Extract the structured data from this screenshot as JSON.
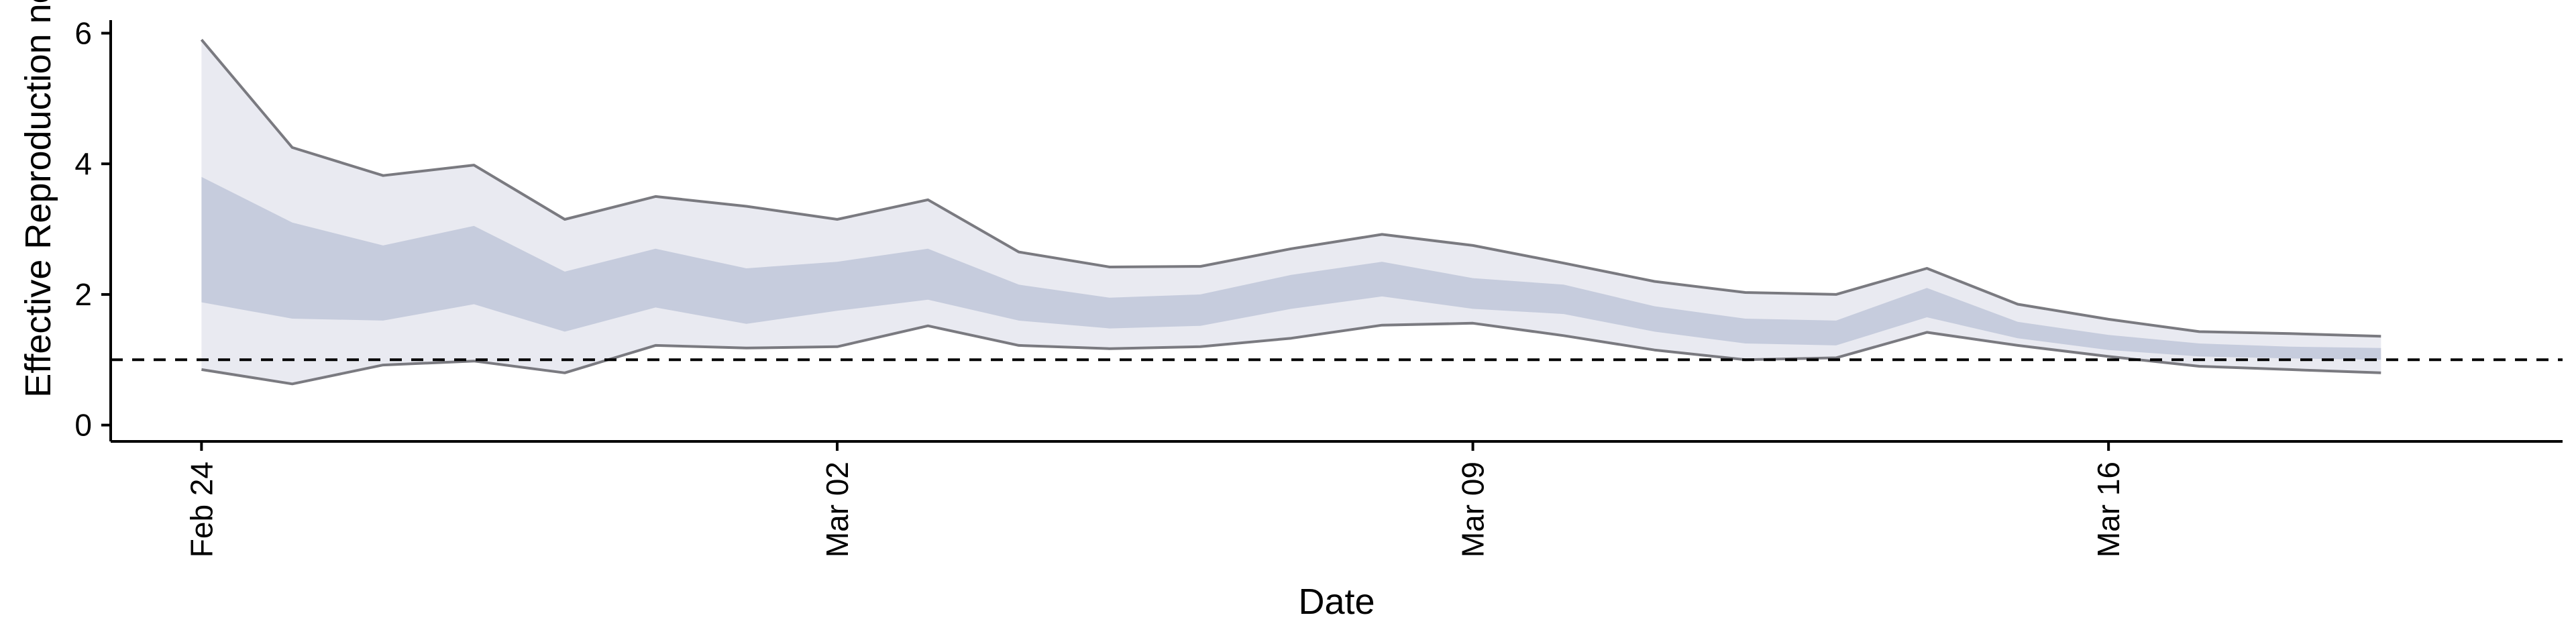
{
  "chart_data": {
    "type": "area",
    "title": "",
    "xlabel": "Date",
    "ylabel": "Effective Reproduction no",
    "x": [
      "2020-02-24",
      "2020-02-25",
      "2020-02-26",
      "2020-02-27",
      "2020-02-28",
      "2020-02-29",
      "2020-03-01",
      "2020-03-02",
      "2020-03-03",
      "2020-03-04",
      "2020-03-05",
      "2020-03-06",
      "2020-03-07",
      "2020-03-08",
      "2020-03-09",
      "2020-03-10",
      "2020-03-11",
      "2020-03-12",
      "2020-03-13",
      "2020-03-14",
      "2020-03-15",
      "2020-03-16",
      "2020-03-17",
      "2020-03-18",
      "2020-03-19"
    ],
    "xlim": [
      "2020-02-23",
      "2020-03-21"
    ],
    "ylim": [
      -0.25,
      6.2
    ],
    "x_ticks": [
      {
        "date": "2020-02-24",
        "label": "Feb 24"
      },
      {
        "date": "2020-03-02",
        "label": "Mar 02"
      },
      {
        "date": "2020-03-09",
        "label": "Mar 09"
      },
      {
        "date": "2020-03-16",
        "label": "Mar 16"
      }
    ],
    "y_ticks": [
      0,
      2,
      4,
      6
    ],
    "reference_line": 1,
    "series": {
      "outer_upper": [
        5.9,
        4.25,
        3.82,
        3.98,
        3.15,
        3.5,
        3.35,
        3.15,
        3.45,
        2.65,
        2.42,
        2.43,
        2.7,
        2.92,
        2.75,
        2.48,
        2.2,
        2.03,
        2.0,
        2.4,
        1.85,
        1.62,
        1.43,
        1.4,
        1.36
      ],
      "outer_lower": [
        0.85,
        0.63,
        0.92,
        0.98,
        0.8,
        1.22,
        1.18,
        1.2,
        1.52,
        1.22,
        1.17,
        1.2,
        1.33,
        1.53,
        1.56,
        1.37,
        1.15,
        1.0,
        1.03,
        1.42,
        1.22,
        1.05,
        0.9,
        0.85,
        0.8
      ],
      "inner_upper": [
        3.8,
        3.1,
        2.75,
        3.05,
        2.35,
        2.7,
        2.4,
        2.5,
        2.7,
        2.15,
        1.95,
        2.0,
        2.3,
        2.5,
        2.25,
        2.15,
        1.82,
        1.63,
        1.6,
        2.1,
        1.58,
        1.38,
        1.25,
        1.2,
        1.18
      ],
      "inner_lower": [
        1.88,
        1.63,
        1.6,
        1.85,
        1.43,
        1.8,
        1.55,
        1.75,
        1.92,
        1.6,
        1.48,
        1.52,
        1.78,
        1.97,
        1.78,
        1.7,
        1.43,
        1.25,
        1.22,
        1.65,
        1.33,
        1.15,
        1.05,
        1.02,
        1.0
      ]
    },
    "colors": {
      "outer_band": "#e9eaf1",
      "inner_band": "#c6ccdd",
      "bound_line": "#7a7a80",
      "reference": "#000000",
      "axis": "#000000"
    },
    "grid": false,
    "legend": "none"
  }
}
